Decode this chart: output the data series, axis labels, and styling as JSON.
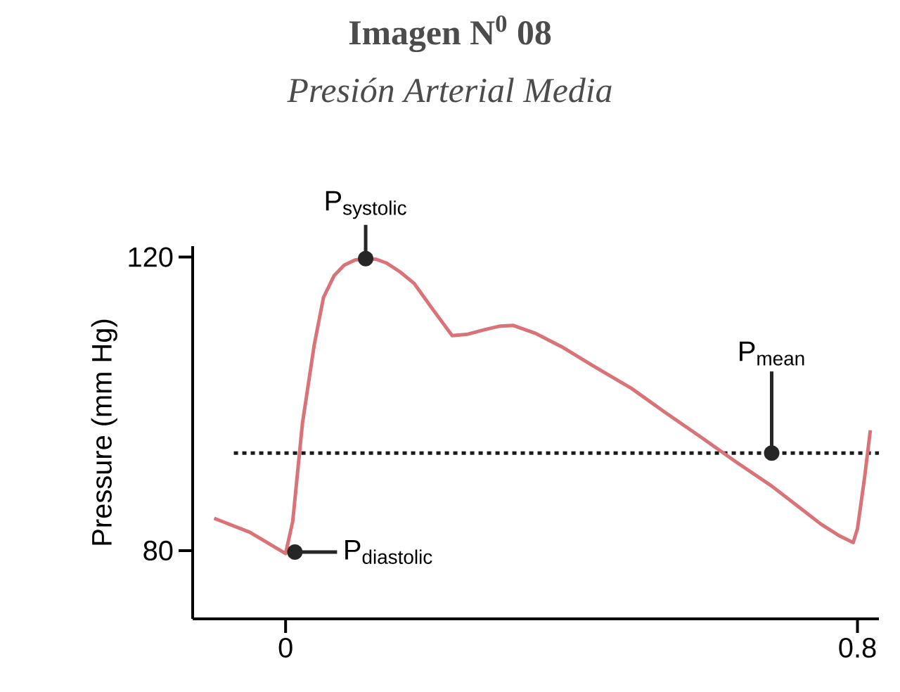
{
  "chart_data": {
    "type": "line",
    "title": "Imagen N$^{0}$ 08",
    "subtitle": "*Presión Arterial Media*",
    "ylabel": "Pressure (mm Hg)",
    "x": [
      -0.1,
      -0.05,
      0,
      0.01,
      0.0235,
      0.04,
      0.053,
      0.068,
      0.082,
      0.097,
      0.112,
      0.127,
      0.141,
      0.16,
      0.18,
      0.205,
      0.233,
      0.255,
      0.278,
      0.3,
      0.318,
      0.35,
      0.386,
      0.43,
      0.484,
      0.53,
      0.582,
      0.63,
      0.68,
      0.72,
      0.749,
      0.775,
      0.794,
      0.8,
      0.81,
      0.818
    ],
    "series": [
      {
        "color": "#d97378",
        "values": [
          84.4,
          82.5,
          79.6,
          84,
          97.3,
          108,
          114.5,
          117.5,
          118.9,
          119.6,
          119.8,
          119.7,
          119.2,
          118,
          116.4,
          113,
          109.3,
          109.5,
          110.1,
          110.6,
          110.7,
          109.6,
          107.8,
          105.2,
          102.1,
          98.9,
          95.4,
          92.1,
          88.8,
          85.8,
          83.6,
          82,
          81.1,
          83,
          90,
          96.4
        ]
      }
    ],
    "xlim": [
      -0.13,
      0.83
    ],
    "ylim": [
      70.7,
      121.5
    ],
    "xticks": [
      0,
      0.8
    ],
    "yticks": [
      80,
      120
    ],
    "ref_lines": [
      {
        "axis": "y",
        "value": 93.3,
        "color": "#1a1a1a",
        "line_style": "dotted"
      }
    ],
    "annotations": [
      {
        "text": "\\mathrm{P}_{\\mathrm{systolic}}",
        "x": 0.112,
        "y": 119.8
      },
      {
        "text": "\\mathrm{P}_{\\mathrm{diastolic}}",
        "x": 0.013,
        "y": 79.8
      },
      {
        "text": "\\mathrm{P}_{\\mathrm{mean}}",
        "x": 0.68,
        "y": 93.3
      }
    ],
    "marker": "none",
    "line_style": "solid"
  }
}
